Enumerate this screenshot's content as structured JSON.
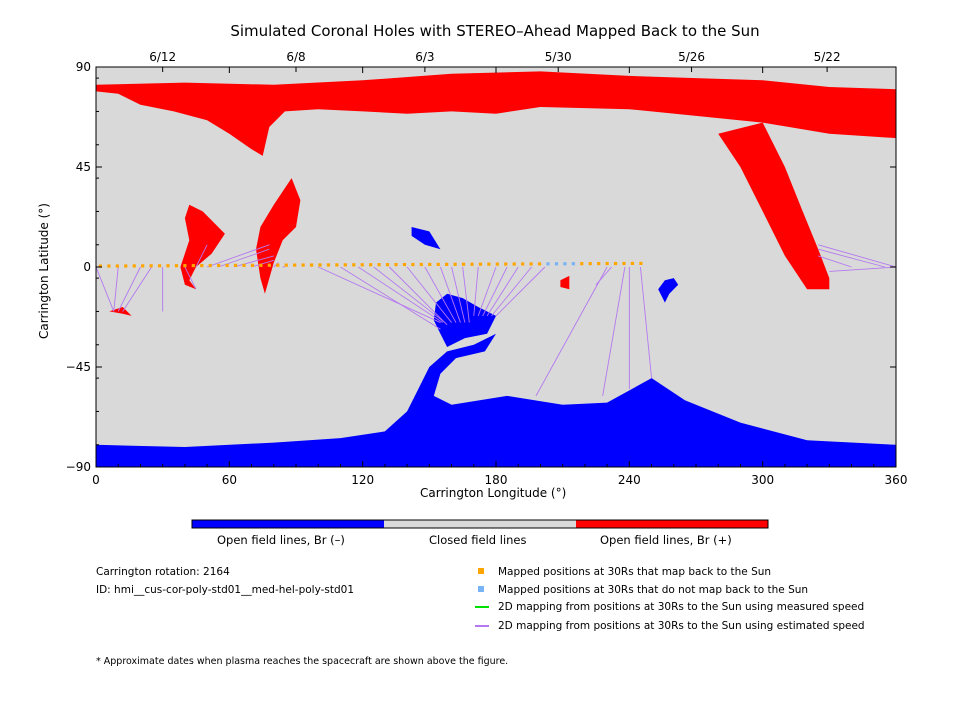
{
  "chart_data": {
    "type": "map",
    "title": "Simulated Coronal Holes with STEREO–Ahead Mapped Back to the Sun",
    "xlabel": "Carrington Longitude (°)",
    "ylabel": "Carrington Latitude (°)",
    "xlim": [
      0,
      360
    ],
    "ylim": [
      -90,
      90
    ],
    "x_ticks": [
      0,
      60,
      120,
      180,
      240,
      300,
      360
    ],
    "y_ticks": [
      90,
      45,
      0,
      -45,
      -90
    ],
    "y_tick_labels": [
      "90",
      "45",
      "0",
      "−45",
      "−90"
    ],
    "top_date_ticks": [
      {
        "label": "6/12",
        "lon": 30
      },
      {
        "label": "6/8",
        "lon": 90
      },
      {
        "label": "6/3",
        "lon": 148
      },
      {
        "label": "5/30",
        "lon": 208
      },
      {
        "label": "5/26",
        "lon": 268
      },
      {
        "label": "5/22",
        "lon": 329
      }
    ],
    "colors": {
      "open_negative": "#0000ff",
      "closed": "#d9d9d9",
      "open_positive": "#ff0000",
      "mapped": "#ffa500",
      "unmapped": "#78b4f5",
      "measured": "#00e000",
      "estimated": "#b478f0"
    },
    "colorbar_labels": [
      "Open field lines, Br (–)",
      "Closed field lines",
      "Open field lines, Br (+)"
    ],
    "regions": {
      "north_open_positive": {
        "polarity": "+",
        "outline": [
          [
            0,
            82
          ],
          [
            40,
            83
          ],
          [
            80,
            82
          ],
          [
            120,
            84
          ],
          [
            160,
            87
          ],
          [
            200,
            88
          ],
          [
            240,
            86
          ],
          [
            270,
            85
          ],
          [
            300,
            84
          ],
          [
            330,
            81
          ],
          [
            360,
            80
          ],
          [
            360,
            58
          ],
          [
            330,
            60
          ],
          [
            300,
            65
          ],
          [
            270,
            68
          ],
          [
            240,
            71
          ],
          [
            200,
            72
          ],
          [
            180,
            69
          ],
          [
            160,
            70
          ],
          [
            140,
            69
          ],
          [
            120,
            70
          ],
          [
            100,
            71
          ],
          [
            85,
            70
          ],
          [
            78,
            63
          ],
          [
            75,
            50
          ],
          [
            70,
            53
          ],
          [
            60,
            60
          ],
          [
            50,
            66
          ],
          [
            35,
            70
          ],
          [
            20,
            73
          ],
          [
            10,
            78
          ],
          [
            0,
            79
          ]
        ]
      },
      "south_open_negative": {
        "polarity": "-",
        "outline": [
          [
            0,
            -80
          ],
          [
            40,
            -81
          ],
          [
            80,
            -79
          ],
          [
            110,
            -77
          ],
          [
            130,
            -74
          ],
          [
            140,
            -65
          ],
          [
            145,
            -55
          ],
          [
            150,
            -45
          ],
          [
            158,
            -38
          ],
          [
            170,
            -35
          ],
          [
            180,
            -30
          ],
          [
            175,
            -38
          ],
          [
            162,
            -41
          ],
          [
            155,
            -48
          ],
          [
            152,
            -58
          ],
          [
            160,
            -62
          ],
          [
            185,
            -58
          ],
          [
            210,
            -62
          ],
          [
            230,
            -61
          ],
          [
            250,
            -50
          ],
          [
            265,
            -60
          ],
          [
            290,
            -70
          ],
          [
            320,
            -78
          ],
          [
            360,
            -80
          ],
          [
            360,
            -90
          ],
          [
            0,
            -90
          ]
        ]
      },
      "central_open_negative": {
        "polarity": "-",
        "outline": [
          [
            153,
            -16
          ],
          [
            158,
            -12
          ],
          [
            165,
            -14
          ],
          [
            172,
            -18
          ],
          [
            180,
            -22
          ],
          [
            176,
            -30
          ],
          [
            166,
            -32
          ],
          [
            158,
            -36
          ],
          [
            155,
            -30
          ],
          [
            152,
            -24
          ]
        ]
      },
      "northwest_patch_negative": {
        "polarity": "-",
        "outline": [
          [
            142,
            18
          ],
          [
            150,
            16
          ],
          [
            155,
            8
          ],
          [
            148,
            10
          ],
          [
            142,
            14
          ]
        ]
      },
      "equator_patch_negative": {
        "polarity": "-",
        "outline": [
          [
            253,
            -10
          ],
          [
            256,
            -6
          ],
          [
            260,
            -5
          ],
          [
            262,
            -8
          ],
          [
            258,
            -12
          ],
          [
            256,
            -16
          ]
        ]
      },
      "patch_positive_40": {
        "polarity": "+",
        "outline": [
          [
            42,
            28
          ],
          [
            48,
            25
          ],
          [
            58,
            15
          ],
          [
            52,
            6
          ],
          [
            45,
            0
          ],
          [
            42,
            -6
          ],
          [
            45,
            -10
          ],
          [
            40,
            -8
          ],
          [
            38,
            0
          ],
          [
            42,
            12
          ],
          [
            40,
            22
          ]
        ]
      },
      "patch_positive_80": {
        "polarity": "+",
        "outline": [
          [
            88,
            40
          ],
          [
            92,
            30
          ],
          [
            90,
            18
          ],
          [
            84,
            12
          ],
          [
            80,
            2
          ],
          [
            76,
            -12
          ],
          [
            74,
            -5
          ],
          [
            72,
            8
          ],
          [
            74,
            18
          ],
          [
            80,
            28
          ],
          [
            84,
            34
          ]
        ]
      },
      "patch_positive_8": {
        "polarity": "+",
        "outline": [
          [
            6,
            -20
          ],
          [
            12,
            -21
          ],
          [
            16,
            -22
          ],
          [
            12,
            -18
          ]
        ]
      },
      "patch_positive_212": {
        "polarity": "+",
        "outline": [
          [
            209,
            -6
          ],
          [
            213,
            -4
          ],
          [
            213,
            -10
          ],
          [
            209,
            -9
          ]
        ]
      },
      "east_strip_positive": {
        "polarity": "+",
        "outline": [
          [
            300,
            65
          ],
          [
            310,
            45
          ],
          [
            318,
            25
          ],
          [
            325,
            8
          ],
          [
            330,
            -5
          ],
          [
            330,
            -10
          ],
          [
            320,
            -10
          ],
          [
            310,
            5
          ],
          [
            300,
            25
          ],
          [
            290,
            45
          ],
          [
            280,
            60
          ]
        ]
      }
    },
    "mapped_points_lon": [
      0,
      248
    ],
    "unmapped_points_lon": [
      203,
      216
    ],
    "estimated_mapping_lines": [
      {
        "from": [
          8,
          -20
        ],
        "to": [
          0,
          0
        ]
      },
      {
        "from": [
          8,
          -20
        ],
        "to": [
          10,
          0
        ]
      },
      {
        "from": [
          10,
          -20
        ],
        "to": [
          20,
          0
        ]
      },
      {
        "from": [
          12,
          -20
        ],
        "to": [
          25,
          0
        ]
      },
      {
        "from": [
          30,
          -20
        ],
        "to": [
          30,
          0
        ]
      },
      {
        "from": [
          45,
          -10
        ],
        "to": [
          40,
          0
        ]
      },
      {
        "from": [
          50,
          10
        ],
        "to": [
          45,
          0
        ]
      },
      {
        "from": [
          78,
          10
        ],
        "to": [
          50,
          0
        ]
      },
      {
        "from": [
          78,
          8
        ],
        "to": [
          55,
          0
        ]
      },
      {
        "from": [
          80,
          5
        ],
        "to": [
          62,
          0
        ]
      },
      {
        "from": [
          80,
          3
        ],
        "to": [
          70,
          0
        ]
      },
      {
        "from": [
          82,
          2
        ],
        "to": [
          80,
          0
        ]
      },
      {
        "from": [
          84,
          0
        ],
        "to": [
          85,
          0
        ]
      },
      {
        "from": [
          155,
          -25
        ],
        "to": [
          100,
          0
        ]
      },
      {
        "from": [
          155,
          -28
        ],
        "to": [
          110,
          0
        ]
      },
      {
        "from": [
          156,
          -25
        ],
        "to": [
          118,
          0
        ]
      },
      {
        "from": [
          157,
          -25
        ],
        "to": [
          125,
          0
        ]
      },
      {
        "from": [
          158,
          -26
        ],
        "to": [
          132,
          0
        ]
      },
      {
        "from": [
          160,
          -25
        ],
        "to": [
          140,
          0
        ]
      },
      {
        "from": [
          162,
          -25
        ],
        "to": [
          148,
          0
        ]
      },
      {
        "from": [
          164,
          -25
        ],
        "to": [
          155,
          0
        ]
      },
      {
        "from": [
          166,
          -25
        ],
        "to": [
          160,
          0
        ]
      },
      {
        "from": [
          168,
          -25
        ],
        "to": [
          165,
          0
        ]
      },
      {
        "from": [
          170,
          -22
        ],
        "to": [
          172,
          0
        ]
      },
      {
        "from": [
          172,
          -22
        ],
        "to": [
          180,
          0
        ]
      },
      {
        "from": [
          174,
          -22
        ],
        "to": [
          185,
          0
        ]
      },
      {
        "from": [
          176,
          -22
        ],
        "to": [
          190,
          0
        ]
      },
      {
        "from": [
          178,
          -22
        ],
        "to": [
          196,
          0
        ]
      },
      {
        "from": [
          180,
          -22
        ],
        "to": [
          202,
          0
        ]
      },
      {
        "from": [
          198,
          -58
        ],
        "to": [
          230,
          0
        ]
      },
      {
        "from": [
          228,
          -58
        ],
        "to": [
          238,
          0
        ]
      },
      {
        "from": [
          240,
          -55
        ],
        "to": [
          240,
          0
        ]
      },
      {
        "from": [
          250,
          -50
        ],
        "to": [
          245,
          0
        ]
      },
      {
        "from": [
          225,
          -8
        ],
        "to": [
          232,
          0
        ]
      },
      {
        "from": [
          325,
          10
        ],
        "to": [
          360,
          0
        ]
      },
      {
        "from": [
          325,
          8
        ],
        "to": [
          355,
          0
        ]
      },
      {
        "from": [
          325,
          5
        ],
        "to": [
          340,
          0
        ]
      },
      {
        "from": [
          330,
          -2
        ],
        "to": [
          360,
          0
        ]
      }
    ]
  },
  "info": {
    "rotation": "Carrington rotation: 2164",
    "id": "ID: hmi__cus-cor-poly-std01__med-hel-poly-std01"
  },
  "legend": [
    {
      "symbol": "square",
      "color": "#ffa500",
      "label": "Mapped positions at 30Rs that map back to the Sun"
    },
    {
      "symbol": "square",
      "color": "#78b4f5",
      "label": "Mapped positions at 30Rs that do not map back to the Sun"
    },
    {
      "symbol": "line",
      "color": "#00e000",
      "label": "2D mapping from positions at 30Rs to the Sun using measured speed"
    },
    {
      "symbol": "line",
      "color": "#b478f0",
      "label": "2D mapping from positions at 30Rs to the Sun using estimated speed"
    }
  ],
  "footnote": "* Approximate dates when plasma reaches the spacecraft are shown above the figure."
}
